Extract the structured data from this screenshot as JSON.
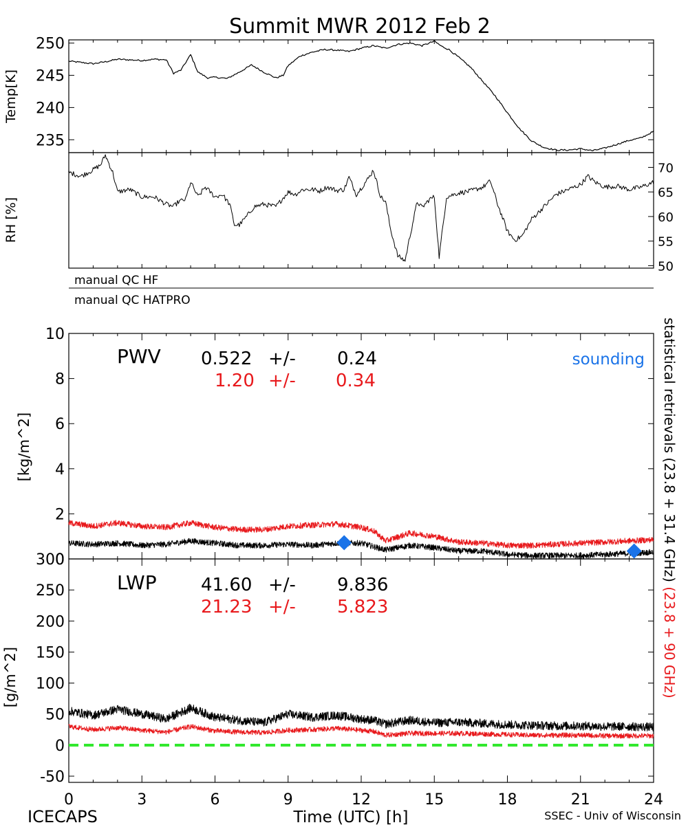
{
  "title": "Summit MWR 2012 Feb  2",
  "footer": {
    "left": "ICECAPS",
    "xlabel": "Time (UTC) [h]",
    "right": "SSEC - Univ of Wisconsin"
  },
  "colors": {
    "black": "#000000",
    "red": "#e8191c",
    "blue": "#1a73e8",
    "green": "#2ee82a"
  },
  "chart_data": [
    {
      "type": "line",
      "name": "temperature",
      "ylabel": "Temp[K]",
      "x_range": [
        0,
        24
      ],
      "ylim": [
        233,
        250.5
      ],
      "y_ticks": [
        "250",
        "245",
        "240",
        "235"
      ],
      "x": [
        0,
        0.5,
        1,
        1.5,
        2,
        2.5,
        3,
        3.5,
        4,
        4.3,
        4.6,
        5,
        5.3,
        5.7,
        6,
        6.5,
        7,
        7.5,
        8,
        8.5,
        8.8,
        9,
        9.5,
        10,
        10.5,
        11,
        11.5,
        12,
        12.5,
        13,
        13.5,
        14,
        14.5,
        15,
        15.3,
        15.6,
        16,
        16.5,
        17,
        17.5,
        18,
        18.5,
        19,
        19.5,
        20,
        20.5,
        21,
        21.5,
        22,
        22.5,
        23,
        23.5,
        24
      ],
      "values": [
        247.2,
        247,
        246.8,
        247.1,
        247.5,
        247.4,
        247.3,
        247.5,
        247.4,
        245.3,
        245.8,
        248.2,
        245.5,
        244.6,
        244.7,
        244.5,
        245.5,
        246.6,
        245.5,
        244.6,
        245.0,
        246.5,
        248.0,
        248.6,
        249.0,
        248.9,
        248.7,
        249.2,
        249.6,
        249.2,
        249.8,
        250.0,
        249.6,
        250.3,
        249.5,
        249.0,
        247.8,
        246.2,
        244.0,
        241.8,
        239.2,
        236.7,
        234.8,
        233.8,
        233.4,
        233.4,
        233.6,
        233.3,
        233.7,
        234.3,
        234.9,
        235.3,
        236.3
      ]
    },
    {
      "type": "line",
      "name": "relative-humidity",
      "ylabel": "RH [%]",
      "x_range": [
        0,
        24
      ],
      "ylim": [
        49.5,
        73
      ],
      "y_ticks": [
        "70",
        "65",
        "60",
        "55",
        "50"
      ],
      "x": [
        0,
        0.5,
        1,
        1.3,
        1.5,
        1.8,
        2,
        2.5,
        3,
        3.5,
        4,
        4.3,
        4.5,
        4.8,
        5,
        5.3,
        5.6,
        6,
        6.3,
        6.6,
        6.8,
        7,
        7.3,
        7.6,
        8,
        8.5,
        9,
        9.3,
        9.6,
        10,
        10.3,
        10.6,
        11,
        11.3,
        11.5,
        11.8,
        12,
        12.3,
        12.5,
        12.8,
        13,
        13.2,
        13.5,
        13.8,
        14,
        14.3,
        14.5,
        14.8,
        15,
        15.2,
        15.5,
        16,
        16.5,
        17,
        17.3,
        17.6,
        18,
        18.3,
        18.6,
        19,
        19.5,
        20,
        20.5,
        21,
        21.3,
        21.6,
        22,
        22.5,
        23,
        23.5,
        24
      ],
      "values": [
        69,
        68.2,
        69.5,
        70.5,
        72.5,
        69,
        65,
        65.5,
        64,
        64,
        62.5,
        62,
        63,
        63.5,
        67,
        64,
        66,
        64,
        64.5,
        62.5,
        58.3,
        58.3,
        60,
        62,
        62.5,
        62,
        65,
        64.5,
        65.5,
        65.5,
        65.2,
        66,
        65.3,
        65.5,
        68,
        64.5,
        65.8,
        67.8,
        69.5,
        64,
        63,
        57.5,
        52,
        51,
        56,
        63,
        61.8,
        63.5,
        64,
        51.8,
        64,
        64.8,
        65.2,
        66,
        67.2,
        62.5,
        57,
        55.2,
        56,
        59.5,
        62,
        64.5,
        65.5,
        66.5,
        68.2,
        67,
        66,
        66.2,
        65.5,
        66,
        67
      ]
    },
    {
      "type": "line",
      "name": "pwv",
      "ylabel": "[kg/m^2]",
      "panel_label": "PWV",
      "x_range": [
        0,
        24
      ],
      "ylim": [
        0,
        10
      ],
      "y_ticks": [
        "10",
        "8",
        "6",
        "4",
        "2",
        "0"
      ],
      "stats": [
        {
          "mean": "0.522",
          "pm": "+/-",
          "std": "0.24",
          "color": "black"
        },
        {
          "mean": "1.20",
          "pm": "+/-",
          "std": "0.34",
          "color": "red"
        }
      ],
      "legend": "sounding",
      "series": [
        {
          "name": "23.8 + 31.4 GHz",
          "color": "black",
          "x": [
            0,
            1,
            2,
            3,
            4,
            5,
            6,
            7,
            8,
            9,
            10,
            11,
            12,
            12.5,
            13,
            14,
            15,
            16,
            17,
            18,
            19,
            20,
            21,
            22,
            23,
            24
          ],
          "values": [
            0.7,
            0.65,
            0.7,
            0.6,
            0.65,
            0.8,
            0.7,
            0.6,
            0.6,
            0.65,
            0.6,
            0.7,
            0.7,
            0.55,
            0.4,
            0.6,
            0.5,
            0.35,
            0.35,
            0.2,
            0.15,
            0.15,
            0.15,
            0.2,
            0.25,
            0.3
          ]
        },
        {
          "name": "23.8 + 90 GHz",
          "color": "red",
          "x": [
            0,
            1,
            2,
            3,
            4,
            5,
            6,
            7,
            8,
            9,
            10,
            11,
            12,
            12.5,
            13,
            14,
            15,
            16,
            17,
            18,
            19,
            20,
            21,
            22,
            23,
            24
          ],
          "values": [
            1.6,
            1.45,
            1.6,
            1.45,
            1.4,
            1.6,
            1.4,
            1.3,
            1.3,
            1.45,
            1.5,
            1.55,
            1.4,
            1.25,
            0.8,
            1.15,
            1.0,
            0.75,
            0.7,
            0.6,
            0.6,
            0.65,
            0.7,
            0.75,
            0.8,
            0.85
          ]
        }
      ],
      "sounding": [
        {
          "x": 11.3,
          "y": 0.72
        },
        {
          "x": 23.2,
          "y": 0.35
        }
      ]
    },
    {
      "type": "line",
      "name": "lwp",
      "ylabel": "[g/m^2]",
      "xlabel": "Time (UTC) [h]",
      "panel_label": "LWP",
      "x_range": [
        0,
        24
      ],
      "ylim": [
        -60,
        300
      ],
      "y_ticks": [
        "300",
        "250",
        "200",
        "150",
        "100",
        "50",
        "0",
        "-50"
      ],
      "x_ticks": [
        "0",
        "3",
        "6",
        "9",
        "12",
        "15",
        "18",
        "21",
        "24"
      ],
      "stats": [
        {
          "mean": "41.60",
          "pm": "+/-",
          "std": "9.836",
          "color": "black"
        },
        {
          "mean": "21.23",
          "pm": "+/-",
          "std": "5.823",
          "color": "red"
        }
      ],
      "zero_line": 0,
      "series": [
        {
          "name": "23.8 + 31.4 GHz",
          "color": "black",
          "x": [
            0,
            1,
            2,
            3,
            4,
            5,
            6,
            7,
            8,
            9,
            10,
            11,
            12,
            12.5,
            13,
            14,
            15,
            16,
            17,
            18,
            19,
            20,
            21,
            22,
            23,
            24
          ],
          "values": [
            55,
            48,
            58,
            50,
            42,
            60,
            45,
            40,
            36,
            50,
            45,
            48,
            42,
            40,
            34,
            40,
            36,
            37,
            35,
            33,
            32,
            31,
            31,
            30,
            30,
            29
          ]
        },
        {
          "name": "23.8 + 90 GHz",
          "color": "red",
          "x": [
            0,
            1,
            2,
            3,
            4,
            5,
            6,
            7,
            8,
            9,
            10,
            11,
            12,
            12.5,
            13,
            14,
            15,
            16,
            17,
            18,
            19,
            20,
            21,
            22,
            23,
            24
          ],
          "values": [
            30,
            25,
            28,
            24,
            21,
            30,
            23,
            21,
            20,
            24,
            25,
            27,
            24,
            22,
            16,
            19,
            19,
            19,
            18,
            17,
            16,
            16,
            16,
            15,
            15,
            15
          ]
        }
      ]
    }
  ],
  "qc_labels": [
    "manual QC HF",
    "manual QC HATPRO"
  ],
  "right_label": {
    "black_part": "statistical retrievals (23.8 + 31.4 GHz)",
    "red_part": "(23.8 + 90 GHz)"
  }
}
